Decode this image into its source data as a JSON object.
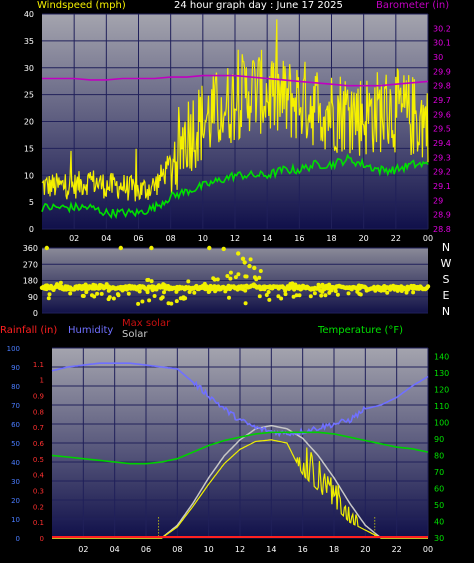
{
  "header": {
    "title": "24 hour graph day : June 17 2025",
    "wind_label": "Windspeed (mph)",
    "baro_label": "Barometer (in)",
    "rain_label": "Rainfall (in)",
    "humidity_label": "Humidity",
    "maxsolar_label": "Max solar",
    "solar_label": "Solar",
    "temp_label": "Temperature (°F)"
  },
  "colors": {
    "wind": "#f5f000",
    "gust": "#00e000",
    "baro": "#c000c0",
    "rain": "#ff2020",
    "humidity": "#7070ff",
    "maxsolar": "#c8c8c8",
    "solar": "#f0f000",
    "temperature": "#00d000",
    "axis_text": "#ffffff",
    "rain_axis": "#2060ff",
    "temp_axis": "#00e000",
    "bg_top": "#9a9aa6",
    "bg_bottom": "#14144e"
  },
  "chart_data": [
    {
      "type": "line",
      "title": "24 hour graph day : June 17 2025",
      "ylabel": "Windspeed (mph)",
      "y2label": "Barometer (in)",
      "ylim": [
        0,
        40
      ],
      "y2lim": [
        28.8,
        30.3
      ],
      "x_ticks": [
        "02",
        "04",
        "06",
        "08",
        "10",
        "12",
        "14",
        "16",
        "18",
        "20",
        "22",
        "00"
      ],
      "y_ticks": [
        "0",
        "5",
        "10",
        "15",
        "20",
        "25",
        "30",
        "35",
        "40"
      ],
      "y2_ticks": [
        "28.8",
        "28.9",
        "29",
        "29.1",
        "29.2",
        "29.3",
        "29.4",
        "29.5",
        "29.6",
        "29.7",
        "29.8",
        "29.9",
        "30",
        "30.1",
        "30.2"
      ],
      "x_hours": [
        0,
        1,
        2,
        3,
        4,
        5,
        6,
        7,
        8,
        9,
        10,
        11,
        12,
        13,
        14,
        15,
        16,
        17,
        18,
        19,
        20,
        21,
        22,
        23,
        24
      ],
      "series": [
        {
          "name": "Gust",
          "values": [
            8,
            8,
            8,
            9,
            8,
            8,
            7,
            8,
            12,
            18,
            20,
            22,
            24,
            26,
            25,
            24,
            24,
            23,
            22,
            22,
            21,
            22,
            22,
            21,
            20
          ]
        },
        {
          "name": "Windspeed",
          "values": [
            4,
            4,
            4,
            4,
            3,
            3,
            3,
            4,
            6,
            7,
            8,
            9,
            10,
            10,
            10,
            11,
            11,
            12,
            12,
            13,
            12,
            11,
            11,
            12,
            12
          ]
        },
        {
          "name": "Barometer",
          "values": [
            29.85,
            29.85,
            29.85,
            29.84,
            29.84,
            29.85,
            29.85,
            29.85,
            29.86,
            29.86,
            29.87,
            29.87,
            29.87,
            29.86,
            29.85,
            29.84,
            29.83,
            29.82,
            29.81,
            29.8,
            29.8,
            29.8,
            29.81,
            29.82,
            29.83
          ]
        }
      ]
    },
    {
      "type": "scatter",
      "ylabel": "Wind direction",
      "ylim": [
        0,
        360
      ],
      "y_ticks": [
        "0",
        "90",
        "180",
        "270",
        "360"
      ],
      "compass": [
        "N",
        "W",
        "S",
        "E",
        "N"
      ],
      "x_hours": [
        0,
        1,
        2,
        3,
        4,
        5,
        6,
        7,
        8,
        9,
        10,
        11,
        12,
        13,
        14,
        15,
        16,
        17,
        18,
        19,
        20,
        21,
        22,
        23,
        24
      ],
      "values": [
        145,
        140,
        140,
        145,
        145,
        140,
        140,
        135,
        140,
        140,
        140,
        140,
        140,
        145,
        140,
        140,
        140,
        140,
        140,
        140,
        140,
        140,
        140,
        140,
        140
      ],
      "spread_min": [
        60,
        90,
        100,
        90,
        60,
        80,
        40,
        60,
        50,
        80,
        60,
        100,
        40,
        60,
        70,
        80,
        90,
        90,
        100,
        100,
        100,
        110,
        110,
        110,
        110
      ],
      "spread_max": [
        180,
        170,
        160,
        170,
        160,
        180,
        200,
        180,
        190,
        180,
        190,
        200,
        260,
        340,
        180,
        170,
        170,
        160,
        160,
        160,
        150,
        150,
        150,
        150,
        150
      ],
      "outliers": [
        {
          "x": 0.3,
          "y": 360
        },
        {
          "x": 4.9,
          "y": 360
        },
        {
          "x": 6.8,
          "y": 360
        },
        {
          "x": 10.4,
          "y": 360
        },
        {
          "x": 11.3,
          "y": 355
        },
        {
          "x": 12.2,
          "y": 330
        },
        {
          "x": 12.5,
          "y": 300
        },
        {
          "x": 12.6,
          "y": 280
        },
        {
          "x": 12.9,
          "y": 260
        },
        {
          "x": 13.2,
          "y": 250
        }
      ]
    },
    {
      "type": "line",
      "ylabel": "Humidity / Solar",
      "y2label": "Temperature (°F)",
      "rain_ylim": [
        0,
        1.2
      ],
      "rain_ticks": [
        "0",
        "0.1",
        "0.2",
        "0.3",
        "0.4",
        "0.5",
        "0.6",
        "0.7",
        "0.8",
        "0.9",
        "1",
        "1.1"
      ],
      "humidity_ylim": [
        0,
        100
      ],
      "humidity_ticks": [
        "0",
        "10",
        "20",
        "30",
        "40",
        "50",
        "60",
        "70",
        "80",
        "90",
        "100"
      ],
      "temp_ylim": [
        30,
        145
      ],
      "temp_ticks": [
        "30",
        "40",
        "50",
        "60",
        "70",
        "80",
        "90",
        "100",
        "110",
        "120",
        "130",
        "140"
      ],
      "x_ticks": [
        "02",
        "04",
        "06",
        "08",
        "10",
        "12",
        "14",
        "16",
        "18",
        "20",
        "22",
        "00"
      ],
      "x_hours": [
        0,
        1,
        2,
        3,
        4,
        5,
        6,
        7,
        8,
        9,
        10,
        11,
        12,
        13,
        14,
        15,
        16,
        17,
        18,
        19,
        20,
        21,
        22,
        23,
        24
      ],
      "series": [
        {
          "name": "Humidity",
          "values": [
            88,
            90,
            91,
            92,
            92,
            92,
            91,
            90,
            89,
            82,
            75,
            68,
            62,
            58,
            56,
            55,
            56,
            58,
            60,
            62,
            68,
            70,
            74,
            80,
            85
          ]
        },
        {
          "name": "Temperature",
          "values": [
            80,
            79,
            78,
            77,
            76,
            75,
            75,
            76,
            78,
            82,
            86,
            89,
            91,
            93,
            94,
            94,
            94,
            94,
            93,
            91,
            89,
            87,
            85,
            84,
            82
          ]
        },
        {
          "name": "Max solar",
          "values": [
            0,
            0,
            0,
            0,
            0,
            0,
            0,
            0,
            0.08,
            0.22,
            0.38,
            0.52,
            0.62,
            0.69,
            0.71,
            0.69,
            0.63,
            0.52,
            0.38,
            0.22,
            0.08,
            0,
            0,
            0,
            0
          ]
        },
        {
          "name": "Solar",
          "values": [
            0,
            0,
            0,
            0,
            0,
            0,
            0,
            0,
            0.07,
            0.2,
            0.34,
            0.47,
            0.56,
            0.61,
            0.62,
            0.6,
            0.4,
            0.3,
            0.2,
            0.1,
            0.05,
            0,
            0,
            0,
            0
          ]
        },
        {
          "name": "Rainfall",
          "values": [
            0,
            0,
            0,
            0,
            0,
            0,
            0,
            0,
            0,
            0,
            0,
            0,
            0,
            0,
            0,
            0,
            0,
            0,
            0,
            0,
            0,
            0,
            0,
            0,
            0
          ]
        }
      ],
      "sunrise_hour": 6.8,
      "sunset_hour": 20.6
    }
  ]
}
